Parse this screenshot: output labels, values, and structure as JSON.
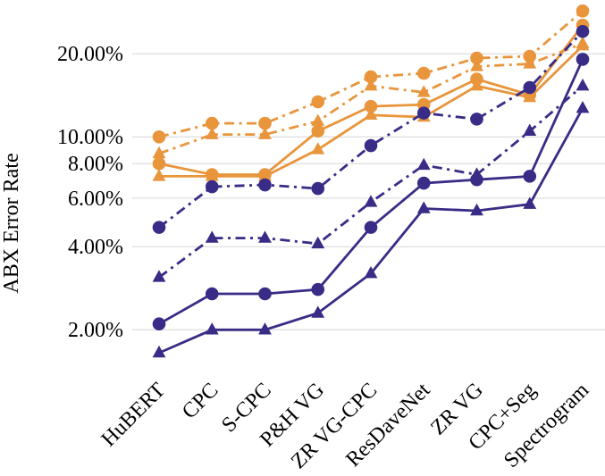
{
  "chart_data": {
    "type": "line",
    "title": "",
    "xlabel": "",
    "ylabel": "ABX Error Rate",
    "y_scale": "log",
    "ylim_percent": [
      1.5,
      31
    ],
    "grid": "horizontal",
    "grid_color": "#d6d6d6",
    "legend": "none",
    "colors": {
      "orange": "#E8953C",
      "purple": "#382C86"
    },
    "categories": [
      "HuBERT",
      "CPC",
      "S-CPC",
      "P&H VG",
      "ZR VG-CPC",
      "ResDaveNet",
      "ZR VG",
      "CPC+Seg",
      "Spectrogram"
    ],
    "yticks": [
      {
        "value": 20,
        "label": "20.00%"
      },
      {
        "value": 10,
        "label": "10.00%"
      },
      {
        "value": 8,
        "label": "8.00%"
      },
      {
        "value": 6,
        "label": "6.00%"
      },
      {
        "value": 4,
        "label": "4.00%"
      },
      {
        "value": 2,
        "label": "2.00%"
      }
    ],
    "series": [
      {
        "id": "orange-solid-triangle",
        "color": "#E8953C",
        "line_style": "solid",
        "marker": "triangle",
        "values": [
          7.2,
          7.2,
          7.2,
          9.0,
          12.0,
          11.8,
          15.3,
          13.9,
          21.4
        ]
      },
      {
        "id": "orange-solid-circle",
        "color": "#E8953C",
        "line_style": "solid",
        "marker": "circle",
        "values": [
          8.0,
          7.3,
          7.3,
          10.5,
          12.9,
          13.1,
          16.2,
          14.2,
          25.4
        ]
      },
      {
        "id": "orange-dashdot-triangle",
        "color": "#E8953C",
        "line_style": "dashdot",
        "marker": "triangle",
        "values": [
          8.7,
          10.2,
          10.2,
          11.4,
          15.3,
          14.5,
          18.0,
          18.4,
          21.8
        ]
      },
      {
        "id": "orange-dashdot-circle",
        "color": "#E8953C",
        "line_style": "dashdot",
        "marker": "circle",
        "values": [
          10.0,
          11.2,
          11.2,
          13.4,
          16.5,
          17.0,
          19.3,
          19.6,
          28.6
        ]
      },
      {
        "id": "purple-solid-triangle",
        "color": "#382C86",
        "line_style": "solid",
        "marker": "triangle",
        "values": [
          1.65,
          2.0,
          2.0,
          2.3,
          3.2,
          5.5,
          5.4,
          5.7,
          12.7
        ]
      },
      {
        "id": "purple-solid-circle",
        "color": "#382C86",
        "line_style": "solid",
        "marker": "circle",
        "values": [
          2.1,
          2.7,
          2.7,
          2.8,
          4.7,
          6.8,
          7.0,
          7.2,
          19.1
        ]
      },
      {
        "id": "purple-dashdot-triangle",
        "color": "#382C86",
        "line_style": "dashdot",
        "marker": "triangle",
        "values": [
          3.1,
          4.3,
          4.3,
          4.1,
          5.8,
          7.9,
          7.3,
          10.5,
          15.3
        ]
      },
      {
        "id": "purple-dashdot-circle",
        "color": "#382C86",
        "line_style": "dashdot",
        "marker": "circle",
        "values": [
          4.7,
          6.6,
          6.7,
          6.5,
          9.3,
          12.2,
          11.6,
          15.1,
          24.1
        ]
      }
    ]
  }
}
